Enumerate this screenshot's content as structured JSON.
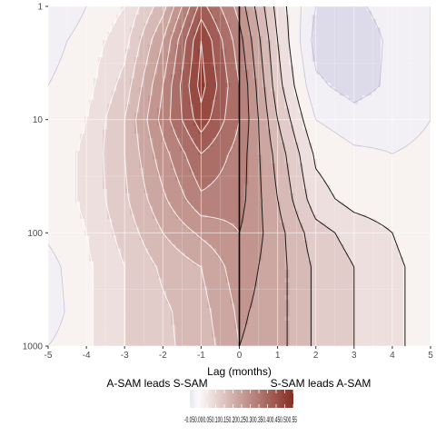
{
  "chart_data": {
    "type": "heatmap",
    "title": "",
    "xlabel": "Lag (months)",
    "ylabel": "",
    "x_ticks": [
      "-5",
      "-4",
      "-3",
      "-2",
      "-1",
      "0",
      "1",
      "2",
      "3",
      "4",
      "5"
    ],
    "y_ticks": [
      "1",
      "10",
      "100",
      "1000"
    ],
    "xlim": [
      -5,
      5
    ],
    "ylim": [
      1000,
      1
    ],
    "y_scale": "log",
    "grid": true,
    "x": [
      -5,
      -4,
      -3,
      -2,
      -1,
      0,
      1,
      2,
      3,
      4,
      5
    ],
    "y": [
      1,
      2,
      5,
      10,
      20,
      50,
      100,
      200,
      500,
      1000
    ],
    "z": [
      [
        -0.05,
        0.0,
        0.05,
        0.18,
        0.42,
        0.28,
        0.08,
        -0.05,
        -0.06,
        -0.03,
        0.0
      ],
      [
        -0.02,
        0.02,
        0.08,
        0.25,
        0.5,
        0.32,
        0.1,
        -0.07,
        -0.08,
        -0.04,
        0.0
      ],
      [
        0.0,
        0.03,
        0.12,
        0.3,
        0.52,
        0.35,
        0.12,
        -0.04,
        -0.07,
        -0.04,
        0.0
      ],
      [
        0.01,
        0.05,
        0.15,
        0.32,
        0.48,
        0.35,
        0.15,
        0.0,
        -0.03,
        -0.02,
        0.0
      ],
      [
        0.02,
        0.06,
        0.15,
        0.28,
        0.4,
        0.33,
        0.18,
        0.04,
        0.01,
        0.0,
        0.01
      ],
      [
        0.02,
        0.06,
        0.14,
        0.24,
        0.34,
        0.32,
        0.2,
        0.07,
        0.03,
        0.02,
        0.02
      ],
      [
        0.01,
        0.05,
        0.12,
        0.2,
        0.26,
        0.3,
        0.22,
        0.12,
        0.08,
        0.05,
        0.02
      ],
      [
        -0.02,
        0.04,
        0.1,
        0.16,
        0.2,
        0.28,
        0.22,
        0.14,
        0.1,
        0.06,
        0.03
      ],
      [
        -0.03,
        0.04,
        0.1,
        0.14,
        0.18,
        0.26,
        0.22,
        0.14,
        0.1,
        0.06,
        0.03
      ],
      [
        0.0,
        0.04,
        0.1,
        0.14,
        0.17,
        0.25,
        0.22,
        0.14,
        0.1,
        0.06,
        0.03
      ]
    ],
    "contour_levels": [
      -0.05,
      0.0,
      0.05,
      0.1,
      0.15,
      0.2,
      0.25,
      0.3,
      0.35,
      0.4,
      0.45,
      0.5,
      0.55
    ],
    "vertical_line_x": 0,
    "annotations": {
      "left": "A-SAM leads S-SAM",
      "right": "S-SAM leads A-SAM"
    },
    "legend": {
      "placement": "bottom",
      "labels": [
        "-0.05",
        "0.00",
        "0.05",
        "0.10",
        "0.15",
        "0.20",
        "0.25",
        "0.30",
        "0.35",
        "0.40",
        "0.45",
        "0.50",
        "0.55"
      ],
      "printed_text": "-0.050.000.050.100.150.200.250.300.350.400.450.500.55"
    },
    "colors": {
      "negative": "#7b75b8",
      "zero": "#fdfbfa",
      "positive": "#862e24",
      "panel_background": "#f5f4f6",
      "grid": "#ffffff",
      "contour_positive_left": "#ffffff",
      "contour_positive_right": "#1a1a1a",
      "zero_line": "#000000"
    }
  }
}
